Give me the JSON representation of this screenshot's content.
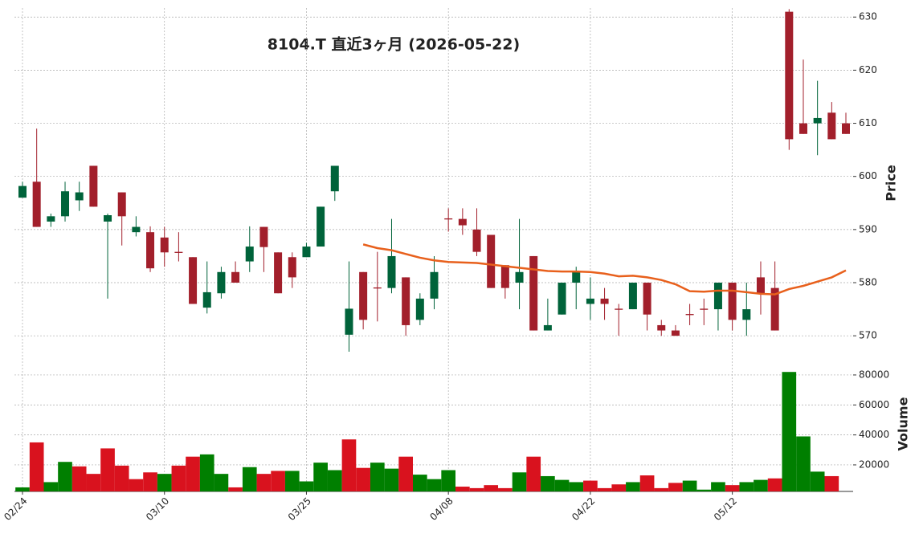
{
  "chart_data": {
    "type": "candlestick",
    "title": "8104.T  直近3ヶ月  (2026-05-22)",
    "ylabel": "Price",
    "categories": [
      "02/24",
      null,
      null,
      null,
      null,
      null,
      null,
      null,
      null,
      null,
      "03/10",
      null,
      null,
      null,
      null,
      null,
      null,
      null,
      null,
      null,
      "03/25",
      null,
      null,
      null,
      null,
      null,
      null,
      null,
      null,
      null,
      "04/08",
      null,
      null,
      null,
      null,
      null,
      null,
      null,
      null,
      null,
      "04/22",
      null,
      null,
      null,
      null,
      null,
      null,
      null,
      null,
      null,
      "05/12",
      null,
      null,
      null,
      null,
      null,
      null,
      null,
      null
    ],
    "open": [
      596,
      599,
      591.5,
      592.5,
      595.5,
      602,
      591.5,
      597,
      589.5,
      589.5,
      588.5,
      585.8,
      584.8,
      575.3,
      578,
      582,
      584,
      590.5,
      585.7,
      584.8,
      584.8,
      586.8,
      597.2,
      570.2,
      582,
      579.1,
      579,
      581,
      573,
      577,
      592.1,
      592,
      590,
      589,
      583.3,
      580,
      585,
      571,
      574,
      580,
      576,
      577,
      575.1,
      575,
      580,
      572,
      571,
      574.1,
      575.1,
      575,
      580,
      573,
      581,
      579,
      631,
      610,
      610,
      612,
      610
    ],
    "high": [
      599,
      609,
      593,
      599,
      599,
      602,
      593,
      597,
      592.5,
      590.6,
      590.5,
      589.5,
      584.8,
      584,
      583,
      584,
      590.6,
      590.5,
      585.7,
      585.7,
      587.5,
      594.3,
      602,
      584,
      582,
      585.8,
      592,
      581,
      578,
      585,
      594,
      594,
      594,
      589,
      583.3,
      592,
      585,
      577,
      580,
      583,
      581,
      579,
      576,
      580,
      580,
      573,
      572,
      576,
      577,
      580,
      580,
      580,
      584,
      584,
      631.5,
      622,
      618,
      614,
      612
    ],
    "low": [
      596,
      590.5,
      590.5,
      591.5,
      593.5,
      594.3,
      577,
      587,
      588.7,
      582,
      583,
      584,
      576,
      574.2,
      577,
      580,
      582,
      582,
      578,
      579,
      584.8,
      586.8,
      595.4,
      567,
      571.2,
      572.7,
      578,
      570,
      572,
      575,
      589.6,
      589,
      585,
      579,
      577,
      575,
      571,
      571,
      574,
      575,
      573,
      573,
      570,
      575,
      571,
      570,
      570,
      572,
      572,
      571,
      571,
      570,
      574,
      571,
      605,
      608,
      604,
      607,
      608
    ],
    "close": [
      598.2,
      590.5,
      592.5,
      597.2,
      597,
      594.3,
      592.7,
      592.5,
      590.5,
      582.7,
      585.7,
      585.6,
      576,
      578.2,
      582,
      580,
      586.8,
      586.7,
      578,
      581,
      586.8,
      594.3,
      602,
      575.1,
      573,
      578.9,
      585,
      572,
      577,
      582,
      591.9,
      590.8,
      585.8,
      579,
      579,
      582,
      571,
      572,
      580,
      582,
      577,
      576,
      574.9,
      580,
      574,
      571,
      570,
      573.9,
      574.9,
      580,
      573,
      575,
      578,
      571,
      607,
      608,
      611,
      607,
      608
    ],
    "up_color": "#00633a",
    "down_color": "#a21f2b",
    "ma": {
      "color": "#e8601c",
      "values": [
        null,
        null,
        null,
        null,
        null,
        null,
        null,
        null,
        null,
        null,
        null,
        null,
        null,
        null,
        null,
        null,
        null,
        null,
        null,
        null,
        null,
        null,
        null,
        null,
        587.2,
        586.5,
        586.1,
        585.4,
        584.7,
        584.2,
        583.9,
        583.8,
        583.7,
        583.4,
        583.1,
        582.8,
        582.5,
        582.2,
        582.1,
        582.1,
        582,
        581.7,
        581.2,
        581.3,
        581,
        580.5,
        579.7,
        578.4,
        578.3,
        578.5,
        578.5,
        578.2,
        577.9,
        577.8,
        578.8,
        579.4,
        580.2,
        581,
        582.3
      ]
    },
    "ylim": [
      566.7,
      631.7
    ],
    "yticks": [
      570,
      580,
      590,
      600,
      610,
      620,
      630
    ],
    "grid": true,
    "volume": {
      "ylabel": "Volume",
      "up_color": "#007f00",
      "down_color": "#d9121e",
      "values": [
        5000,
        35000,
        8500,
        22000,
        19000,
        14000,
        31000,
        19500,
        10500,
        15000,
        14000,
        19500,
        25500,
        27000,
        14000,
        5000,
        18500,
        14000,
        16000,
        16000,
        9000,
        21500,
        16500,
        37000,
        18000,
        21500,
        17500,
        25500,
        13500,
        10500,
        16500,
        5500,
        4500,
        6500,
        4500,
        15000,
        25500,
        12500,
        10000,
        8500,
        9500,
        4500,
        7000,
        8500,
        13000,
        4500,
        8000,
        9500,
        3500,
        8500,
        6500,
        8500,
        10000,
        11000,
        82000,
        39000,
        15500,
        12500,
        null
      ],
      "ylim": [
        2300,
        86400
      ],
      "yticks": [
        20000,
        40000,
        60000,
        80000
      ]
    }
  }
}
